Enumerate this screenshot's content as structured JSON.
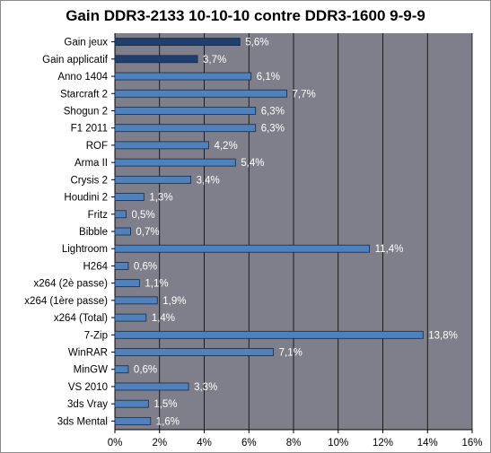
{
  "chart_data": {
    "type": "bar",
    "orientation": "horizontal",
    "title": "Gain DDR3-2133 10-10-10 contre DDR3-1600 9-9-9",
    "categories": [
      "Gain jeux",
      "Gain applicatif",
      "Anno 1404",
      "Starcraft 2",
      "Shogun 2",
      "F1 2011",
      "ROF",
      "Arma II",
      "Crysis 2",
      "Houdini 2",
      "Fritz",
      "Bibble",
      "Lightroom",
      "H264",
      "x264 (2è passe)",
      "x264 (1ère passe)",
      "x264 (Total)",
      "7-Zip",
      "WinRAR",
      "MinGW",
      "VS 2010",
      "3ds Vray",
      "3ds Mental"
    ],
    "values": [
      5.6,
      3.7,
      6.1,
      7.7,
      6.3,
      6.3,
      4.2,
      5.4,
      3.4,
      1.3,
      0.5,
      0.7,
      11.4,
      0.6,
      1.1,
      1.9,
      1.4,
      13.8,
      7.1,
      0.6,
      3.3,
      1.5,
      1.6
    ],
    "value_labels": [
      "5,6%",
      "3,7%",
      "6,1%",
      "7,7%",
      "6,3%",
      "6,3%",
      "4,2%",
      "5,4%",
      "3,4%",
      "1,3%",
      "0,5%",
      "0,7%",
      "11,4%",
      "0,6%",
      "1,1%",
      "1,9%",
      "1,4%",
      "13,8%",
      "7,1%",
      "0,6%",
      "3,3%",
      "1,5%",
      "1,6%"
    ],
    "highlight_count": 2,
    "xlim": [
      0,
      16
    ],
    "ticks": [
      0,
      2,
      4,
      6,
      8,
      10,
      12,
      14,
      16
    ],
    "tick_labels": [
      "0%",
      "2%",
      "4%",
      "6%",
      "8%",
      "10%",
      "12%",
      "14%",
      "16%"
    ],
    "xlabel": "",
    "ylabel": "",
    "grid": true,
    "legend": "none",
    "colors": {
      "plot_background": "#7f7f8c",
      "bar": "#4f81bd",
      "bar_highlight": "#1f3f6f",
      "grid": "#000000",
      "value_label": "#ffffff"
    }
  }
}
